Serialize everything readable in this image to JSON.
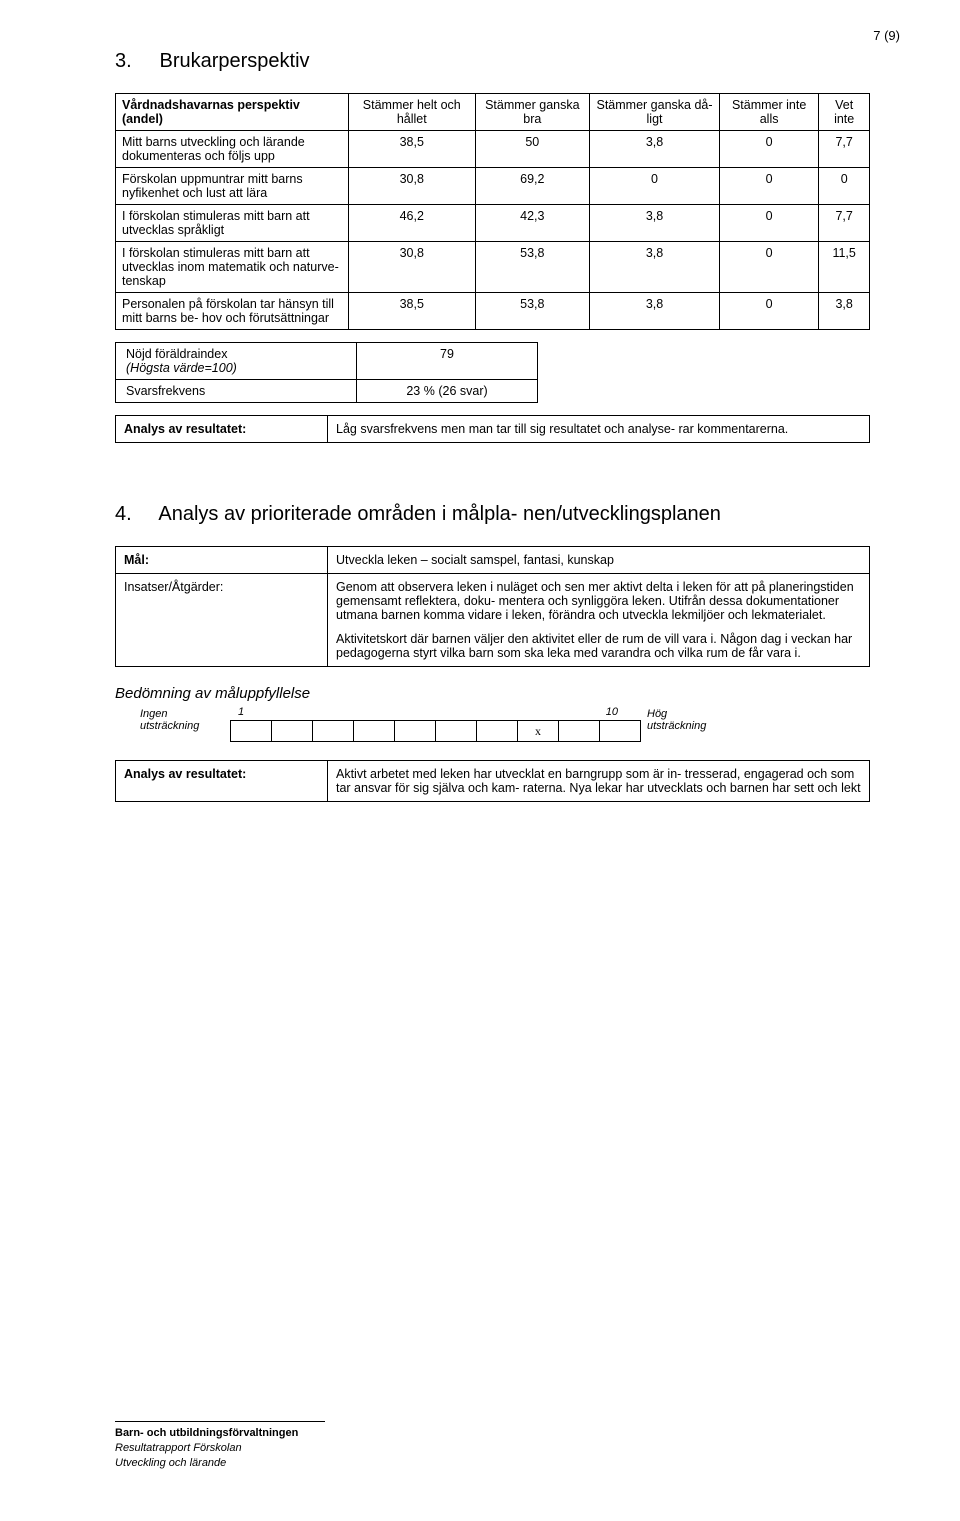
{
  "page_number": "7 (9)",
  "section3": {
    "number": "3.",
    "title": "Brukarperspektiv",
    "table_header_first": "Vårdnadshavarnas perspektiv   (andel)",
    "columns": [
      "Stämmer helt och hållet",
      "Stämmer ganska bra",
      "Stämmer ganska då- ligt",
      "Stämmer inte alls",
      "Vet inte"
    ],
    "rows": [
      {
        "label": "Mitt barns utveckling och lärande dokumenteras och följs upp",
        "values": [
          "38,5",
          "50",
          "3,8",
          "0",
          "7,7"
        ]
      },
      {
        "label": "Förskolan uppmuntrar mitt barns nyfikenhet och lust att lära",
        "values": [
          "30,8",
          "69,2",
          "0",
          "0",
          "0"
        ]
      },
      {
        "label": "I förskolan stimuleras mitt barn att utvecklas språkligt",
        "values": [
          "46,2",
          "42,3",
          "3,8",
          "0",
          "7,7"
        ]
      },
      {
        "label": "I förskolan stimuleras mitt barn att utvecklas inom matematik och naturve- tenskap",
        "values": [
          "30,8",
          "53,8",
          "3,8",
          "0",
          "11,5"
        ]
      },
      {
        "label": "Personalen på förskolan tar hänsyn till mitt barns be- hov och förutsättningar",
        "values": [
          "38,5",
          "53,8",
          "3,8",
          "0",
          "3,8"
        ]
      }
    ],
    "summary": {
      "row1_label": "Nöjd föräldraindex",
      "row1_sub": "(Högsta värde=100)",
      "row1_value": "79",
      "row2_label": "Svarsfrekvens",
      "row2_value": "23 % (26 svar)"
    },
    "analysis": {
      "label": "Analys av resultatet:",
      "text": "Låg svarsfrekvens men man tar till sig resultatet och analyse- rar kommentarerna."
    }
  },
  "section4": {
    "number": "4.",
    "title": "Analys av prioriterade områden i målpla- nen/utvecklingsplanen",
    "goal": {
      "label": "Mål:",
      "text": "Utveckla leken – socialt samspel, fantasi, kunskap"
    },
    "actions": {
      "label": "Insatser/Åtgärder:",
      "p1": "Genom att observera leken i nuläget och sen mer aktivt delta i leken för att på planeringstiden gemensamt reflektera, doku- mentera och synliggöra leken. Utifrån dessa dokumentationer utmana barnen komma vidare i leken, förändra och utveckla lekmiljöer och lekmaterialet.",
      "p2": "Aktivitetskort där barnen väljer den aktivitet eller de rum de vill vara i. Någon dag i veckan har pedagogerna styrt vilka barn som ska leka med varandra och vilka rum de får vara i."
    },
    "rating": {
      "heading": "Bedömning av måluppfyllelse",
      "left_top": "Ingen",
      "left_bottom": "utsträckning",
      "right_top": "Hög",
      "right_bottom": "utsträckning",
      "scale_low": "1",
      "scale_high": "10",
      "mark_index": 7,
      "mark_char": "x"
    },
    "analysis": {
      "label": "Analys av resultatet:",
      "text": "Aktivt arbetet med leken har utvecklat en barngrupp som är in- tresserad, engagerad och som tar ansvar för sig själva och kam- raterna. Nya lekar har utvecklats och barnen har sett och lekt"
    }
  },
  "footer": {
    "line1": "Barn- och utbildningsförvaltningen",
    "line2": "Resultatrapport Förskolan",
    "line3": "Utveckling och lärande"
  }
}
